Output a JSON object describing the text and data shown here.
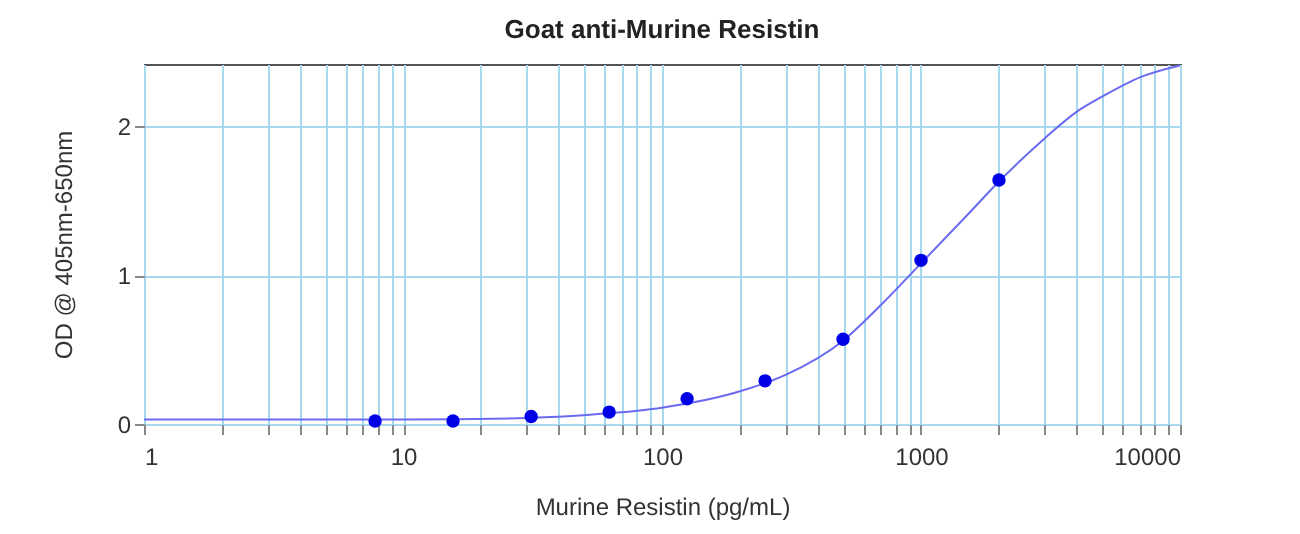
{
  "chart_data": {
    "type": "scatter",
    "title": "Goat anti-Murine Resistin",
    "xlabel": "Murine Resistin (pg/mL)",
    "ylabel": "OD @ 405nm-650nm",
    "log": "x",
    "grid": true,
    "xlim": [
      1,
      10000
    ],
    "ylim": [
      0,
      2.42
    ],
    "xticks": [
      1,
      {
        "value": 2,
        "label": null
      },
      {
        "value": 3,
        "label": null
      },
      {
        "value": 4,
        "label": null
      },
      {
        "value": 5,
        "label": null
      },
      {
        "value": 6,
        "label": null
      },
      {
        "value": 7,
        "label": null
      },
      {
        "value": 8,
        "label": null
      },
      {
        "value": 9,
        "label": null
      },
      10,
      {
        "value": 20,
        "label": null
      },
      {
        "value": 30,
        "label": null
      },
      {
        "value": 40,
        "label": null
      },
      {
        "value": 50,
        "label": null
      },
      {
        "value": 60,
        "label": null
      },
      {
        "value": 70,
        "label": null
      },
      {
        "value": 80,
        "label": null
      },
      {
        "value": 90,
        "label": null
      },
      100,
      {
        "value": 200,
        "label": null
      },
      {
        "value": 300,
        "label": null
      },
      {
        "value": 400,
        "label": null
      },
      {
        "value": 500,
        "label": null
      },
      {
        "value": 600,
        "label": null
      },
      {
        "value": 700,
        "label": null
      },
      {
        "value": 800,
        "label": null
      },
      {
        "value": 900,
        "label": null
      },
      1000,
      {
        "value": 2000,
        "label": null
      },
      {
        "value": 3000,
        "label": null
      },
      {
        "value": 4000,
        "label": null
      },
      {
        "value": 5000,
        "label": null
      },
      {
        "value": 6000,
        "label": null
      },
      {
        "value": 7000,
        "label": null
      },
      {
        "value": 8000,
        "label": null
      },
      {
        "value": 9000,
        "label": null
      },
      10000
    ],
    "yticks": [
      0,
      1,
      2
    ],
    "series": [
      {
        "type": "line",
        "color": "#6a6af0",
        "marker": "none",
        "line_style": "solid",
        "x": [
          1,
          10,
          30,
          60,
          100,
          200,
          300,
          500,
          700,
          1000,
          1500,
          2000,
          3000,
          4000,
          5000,
          7000,
          10000
        ],
        "values": [
          0.03,
          0.03,
          0.04,
          0.07,
          0.11,
          0.22,
          0.33,
          0.56,
          0.8,
          1.08,
          1.4,
          1.63,
          1.92,
          2.1,
          2.2,
          2.33,
          2.41
        ]
      },
      {
        "color": "#0000e6",
        "marker": "circle",
        "x": [
          7.8,
          15.6,
          31.25,
          62.5,
          125,
          250,
          500,
          1000,
          2000
        ],
        "values": [
          0.02,
          0.02,
          0.05,
          0.08,
          0.17,
          0.29,
          0.57,
          1.1,
          1.64
        ]
      }
    ]
  }
}
